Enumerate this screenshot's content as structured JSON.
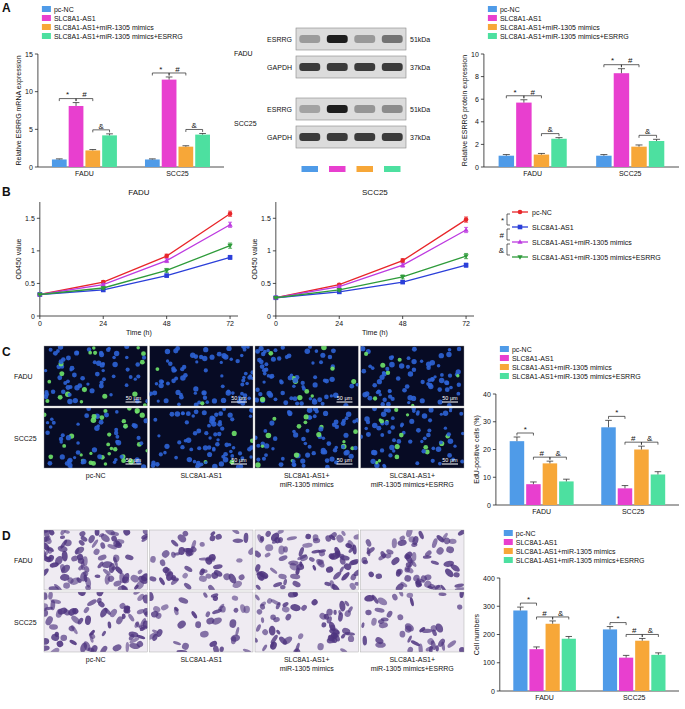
{
  "panels": [
    "A",
    "B",
    "C",
    "D"
  ],
  "chart_data": [
    {
      "type": "bar",
      "y_label": "Relative ESRRG mRNA expression",
      "categories": [
        "FADU",
        "SCC25"
      ],
      "series": [
        {
          "name": "pc-NC",
          "color": "#4f9be8",
          "values": [
            1.0,
            1.0
          ],
          "errors": [
            0.08,
            0.08
          ]
        },
        {
          "name": "SLC8A1-AS1",
          "color": "#e83fcf",
          "values": [
            8.1,
            11.6
          ],
          "errors": [
            0.45,
            0.35
          ]
        },
        {
          "name": "SLC8A1-AS1+miR-1305 mimics",
          "color": "#f7a738",
          "values": [
            2.2,
            2.7
          ],
          "errors": [
            0.12,
            0.12
          ]
        },
        {
          "name": "SLC8A1-AS1+miR-1305 mimics+ESRRG",
          "color": "#4de0a0",
          "values": [
            4.2,
            4.3
          ],
          "errors": [
            0.2,
            0.15
          ]
        }
      ],
      "ylim": [
        0,
        15
      ],
      "yticks": [
        0,
        5,
        10,
        15
      ],
      "legend": "top",
      "grid": false,
      "annotations": [
        {
          "text": "*",
          "between": [
            "pc-NC",
            "SLC8A1-AS1"
          ]
        },
        {
          "text": "#",
          "between": [
            "SLC8A1-AS1",
            "SLC8A1-AS1+miR-1305 mimics"
          ]
        },
        {
          "text": "&",
          "between": [
            "SLC8A1-AS1+miR-1305 mimics",
            "SLC8A1-AS1+miR-1305 mimics+ESRRG"
          ]
        }
      ]
    },
    {
      "type": "bar",
      "y_label": "Relative ESRRG protein expression",
      "categories": [
        "FADU",
        "SCC25"
      ],
      "series": [
        {
          "name": "pc-NC",
          "color": "#4f9be8",
          "values": [
            1.0,
            1.0
          ],
          "errors": [
            0.1,
            0.1
          ]
        },
        {
          "name": "SLC8A1-AS1",
          "color": "#e83fcf",
          "values": [
            5.7,
            8.3
          ],
          "errors": [
            0.25,
            0.4
          ]
        },
        {
          "name": "SLC8A1-AS1+miR-1305 mimics",
          "color": "#f7a738",
          "values": [
            1.1,
            1.8
          ],
          "errors": [
            0.1,
            0.15
          ]
        },
        {
          "name": "SLC8A1-AS1+miR-1305 mimics+ESRRG",
          "color": "#4de0a0",
          "values": [
            2.5,
            2.3
          ],
          "errors": [
            0.1,
            0.15
          ]
        }
      ],
      "ylim": [
        0,
        10
      ],
      "yticks": [
        0,
        2,
        4,
        6,
        8,
        10
      ],
      "legend": "top",
      "grid": false,
      "annotations": [
        {
          "text": "*",
          "between": [
            "pc-NC",
            "SLC8A1-AS1"
          ]
        },
        {
          "text": "#",
          "between": [
            "SLC8A1-AS1",
            "SLC8A1-AS1+miR-1305 mimics"
          ]
        },
        {
          "text": "&",
          "between": [
            "SLC8A1-AS1+miR-1305 mimics",
            "SLC8A1-AS1+miR-1305 mimics+ESRRG"
          ]
        }
      ]
    },
    {
      "type": "line",
      "title": "FADU",
      "x_label": "Time (h)",
      "y_label": "OD450 value",
      "x": [
        0,
        24,
        48,
        72
      ],
      "series": [
        {
          "color": "#e8262a",
          "marker": "circle",
          "values": [
            0.33,
            0.52,
            0.92,
            1.57
          ],
          "errors": [
            0.01,
            0.02,
            0.03,
            0.04
          ]
        },
        {
          "color": "#2b3fd9",
          "marker": "square",
          "values": [
            0.33,
            0.4,
            0.62,
            0.9
          ],
          "errors": [
            0.01,
            0.02,
            0.02,
            0.03
          ]
        },
        {
          "color": "#bd3be0",
          "marker": "triangle",
          "values": [
            0.33,
            0.48,
            0.85,
            1.4
          ],
          "errors": [
            0.01,
            0.02,
            0.03,
            0.04
          ]
        },
        {
          "color": "#2e9b3a",
          "marker": "triangle-down",
          "values": [
            0.33,
            0.43,
            0.7,
            1.08
          ],
          "errors": [
            0.01,
            0.02,
            0.03,
            0.04
          ]
        }
      ],
      "xlim": [
        0,
        75
      ],
      "xticks": [
        0,
        24,
        48,
        72
      ],
      "ylim": [
        0,
        1.75
      ],
      "yticks": [
        0,
        0.5,
        1,
        1.5
      ],
      "grid": false
    },
    {
      "type": "line",
      "title": "SCC25",
      "x_label": "Time (h)",
      "y_label": "OD450 value",
      "x": [
        0,
        24,
        48,
        72
      ],
      "series": [
        {
          "name": "pc-NC",
          "color": "#e8262a",
          "marker": "circle",
          "values": [
            0.28,
            0.48,
            0.85,
            1.48
          ],
          "errors": [
            0.01,
            0.02,
            0.03,
            0.04
          ]
        },
        {
          "name": "SLC8A1-AS1",
          "color": "#2b3fd9",
          "marker": "square",
          "values": [
            0.28,
            0.37,
            0.52,
            0.78
          ],
          "errors": [
            0.01,
            0.02,
            0.02,
            0.03
          ]
        },
        {
          "name": "SLC8A1-AS1+miR-1305 mimics",
          "color": "#bd3be0",
          "marker": "triangle",
          "values": [
            0.28,
            0.45,
            0.78,
            1.32
          ],
          "errors": [
            0.01,
            0.02,
            0.03,
            0.04
          ]
        },
        {
          "name": "SLC8A1-AS1+miR-1305 mimics+ESRRG",
          "color": "#2e9b3a",
          "marker": "triangle-down",
          "values": [
            0.28,
            0.4,
            0.6,
            0.92
          ],
          "errors": [
            0.01,
            0.02,
            0.03,
            0.04
          ]
        }
      ],
      "xlim": [
        0,
        75
      ],
      "xticks": [
        0,
        24,
        48,
        72
      ],
      "ylim": [
        0,
        1.75
      ],
      "yticks": [
        0,
        0.5,
        1,
        1.5
      ],
      "grid": false,
      "legend": "right",
      "annotations": [
        {
          "text": "*",
          "between": [
            "pc-NC",
            "SLC8A1-AS1"
          ]
        },
        {
          "text": "#",
          "between": [
            "SLC8A1-AS1",
            "SLC8A1-AS1+miR-1305 mimics"
          ]
        },
        {
          "text": "&",
          "between": [
            "SLC8A1-AS1+miR-1305 mimics",
            "SLC8A1-AS1+miR-1305 mimics+ESRRG"
          ]
        }
      ]
    },
    {
      "type": "bar",
      "y_label": "EdU-positive cells (%)",
      "categories": [
        "FADU",
        "SCC25"
      ],
      "series": [
        {
          "name": "pc-NC",
          "color": "#4f9be8",
          "values": [
            23,
            28
          ],
          "errors": [
            1.5,
            2.5
          ]
        },
        {
          "name": "SLC8A1-AS1",
          "color": "#e83fcf",
          "values": [
            7.5,
            6
          ],
          "errors": [
            0.8,
            1
          ]
        },
        {
          "name": "SLC8A1-AS1+miR-1305 mimics",
          "color": "#f7a738",
          "values": [
            15,
            20
          ],
          "errors": [
            0.8,
            1.2
          ]
        },
        {
          "name": "SLC8A1-AS1+miR-1305 mimics+ESRRG",
          "color": "#4de0a0",
          "values": [
            8.5,
            11
          ],
          "errors": [
            0.8,
            1
          ]
        }
      ],
      "ylim": [
        0,
        40
      ],
      "yticks": [
        0,
        10,
        20,
        30,
        40
      ],
      "legend": "top",
      "grid": false,
      "annotations": [
        {
          "text": "*",
          "between": [
            "pc-NC",
            "SLC8A1-AS1"
          ]
        },
        {
          "text": "#",
          "between": [
            "SLC8A1-AS1",
            "SLC8A1-AS1+miR-1305 mimics"
          ]
        },
        {
          "text": "&",
          "between": [
            "SLC8A1-AS1+miR-1305 mimics",
            "SLC8A1-AS1+miR-1305 mimics+ESRRG"
          ]
        }
      ]
    },
    {
      "type": "bar",
      "y_label": "Cell numbers",
      "categories": [
        "FADU",
        "SCC25"
      ],
      "series": [
        {
          "name": "pc-NC",
          "color": "#4f9be8",
          "values": [
            285,
            218
          ],
          "errors": [
            12,
            10
          ]
        },
        {
          "name": "SLC8A1-AS1",
          "color": "#e83fcf",
          "values": [
            148,
            118
          ],
          "errors": [
            8,
            8
          ]
        },
        {
          "name": "SLC8A1-AS1+miR-1305 mimics",
          "color": "#f7a738",
          "values": [
            238,
            178
          ],
          "errors": [
            10,
            8
          ]
        },
        {
          "name": "SLC8A1-AS1+miR-1305 mimics+ESRRG",
          "color": "#4de0a0",
          "values": [
            185,
            128
          ],
          "errors": [
            8,
            7
          ]
        }
      ],
      "ylim": [
        0,
        400
      ],
      "yticks": [
        0,
        100,
        200,
        300,
        400
      ],
      "legend": "top",
      "grid": false,
      "annotations": [
        {
          "text": "*",
          "between": [
            "pc-NC",
            "SLC8A1-AS1"
          ]
        },
        {
          "text": "#",
          "between": [
            "SLC8A1-AS1",
            "SLC8A1-AS1+miR-1305 mimics"
          ]
        },
        {
          "text": "&",
          "between": [
            "SLC8A1-AS1+miR-1305 mimics",
            "SLC8A1-AS1+miR-1305 mimics+ESRRG"
          ]
        }
      ]
    }
  ],
  "blot": {
    "cell_lines": [
      "FADU",
      "SCC25"
    ],
    "targets": [
      "ESRRG",
      "GAPDH"
    ],
    "sizes": [
      "51kDa",
      "37kDa"
    ]
  },
  "image_panels": [
    {
      "type": "fluorescence",
      "rows": [
        "FADU",
        "SCC25"
      ],
      "columns": [
        "pc-NC",
        "SLC8A1-AS1",
        "SLC8A1-AS1+miR-1305 mimics",
        "SLC8A1-AS1+miR-1305 mimics+ESRRG"
      ],
      "scale_bar": "50 μm"
    },
    {
      "type": "stain",
      "rows": [
        "FADU",
        "SCC25"
      ],
      "columns": [
        "pc-NC",
        "SLC8A1-AS1",
        "SLC8A1-AS1+miR-1305 mimics",
        "SLC8A1-AS1+miR-1305 mimics+ESRRG"
      ]
    }
  ]
}
